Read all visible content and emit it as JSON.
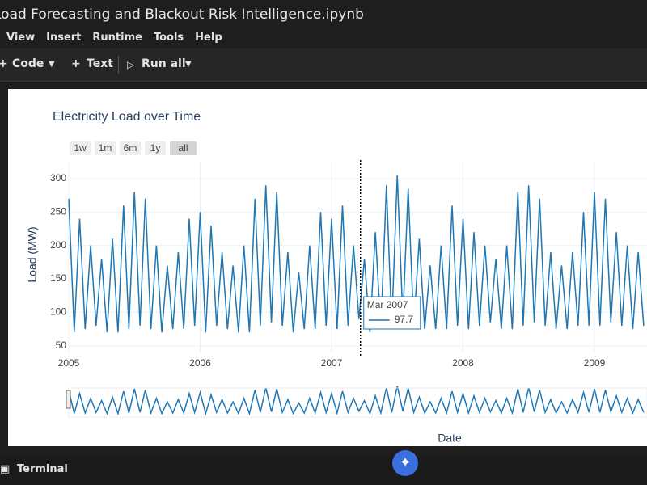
{
  "app": {
    "notebook_title": "Load Forecasting and Blackout Risk Intelligence.ipynb",
    "menu": [
      "View",
      "Insert",
      "Runtime",
      "Tools",
      "Help"
    ],
    "toolbar": [
      "Code",
      "Text",
      "Run all"
    ],
    "status_bar": "Terminal"
  },
  "chart_data": {
    "type": "line",
    "title": "Electricity Load over Time",
    "x_label": "Date",
    "y_label": "Load (MW)",
    "range_buttons": [
      "1w",
      "1m",
      "6m",
      "1y",
      "all"
    ],
    "active_range": 4,
    "color": "#1f77b4",
    "grid": true,
    "xlim": [
      2005,
      2009.4
    ],
    "xticks": [
      2005,
      2006,
      2007,
      2008,
      2009
    ],
    "ylim": [
      40,
      315
    ],
    "yticks": [
      50,
      100,
      150,
      200,
      250,
      300
    ],
    "x": [
      2005.0,
      2005.042,
      2005.083,
      2005.125,
      2005.167,
      2005.208,
      2005.25,
      2005.292,
      2005.333,
      2005.375,
      2005.417,
      2005.458,
      2005.5,
      2005.542,
      2005.583,
      2005.625,
      2005.667,
      2005.708,
      2005.75,
      2005.792,
      2005.833,
      2005.875,
      2005.917,
      2005.958,
      2006.0,
      2006.042,
      2006.083,
      2006.125,
      2006.167,
      2006.208,
      2006.25,
      2006.292,
      2006.333,
      2006.375,
      2006.417,
      2006.458,
      2006.5,
      2006.542,
      2006.583,
      2006.625,
      2006.667,
      2006.708,
      2006.75,
      2006.792,
      2006.833,
      2006.875,
      2006.917,
      2006.958,
      2007.0,
      2007.042,
      2007.083,
      2007.125,
      2007.167,
      2007.208,
      2007.25,
      2007.292,
      2007.333,
      2007.375,
      2007.417,
      2007.458,
      2007.5,
      2007.542,
      2007.583,
      2007.625,
      2007.667,
      2007.708,
      2007.75,
      2007.792,
      2007.833,
      2007.875,
      2007.917,
      2007.958,
      2008.0,
      2008.042,
      2008.083,
      2008.125,
      2008.167,
      2008.208,
      2008.25,
      2008.292,
      2008.333,
      2008.375,
      2008.417,
      2008.458,
      2008.5,
      2008.542,
      2008.583,
      2008.625,
      2008.667,
      2008.708,
      2008.75,
      2008.792,
      2008.833,
      2008.875,
      2008.917,
      2008.958,
      2009.0,
      2009.042,
      2009.083,
      2009.125,
      2009.167,
      2009.208,
      2009.25,
      2009.292,
      2009.333,
      2009.375
    ],
    "values": [
      270,
      70,
      240,
      75,
      200,
      80,
      180,
      70,
      210,
      70,
      260,
      75,
      280,
      80,
      270,
      75,
      200,
      70,
      170,
      75,
      190,
      75,
      240,
      80,
      250,
      70,
      230,
      80,
      190,
      75,
      170,
      70,
      200,
      70,
      270,
      80,
      290,
      85,
      280,
      80,
      190,
      70,
      160,
      75,
      200,
      75,
      250,
      80,
      240,
      75,
      260,
      80,
      200,
      90,
      180,
      70,
      220,
      75,
      290,
      80,
      305,
      90,
      285,
      80,
      210,
      75,
      170,
      75,
      200,
      75,
      260,
      80,
      240,
      75,
      220,
      80,
      200,
      85,
      180,
      75,
      200,
      75,
      280,
      80,
      290,
      85,
      270,
      80,
      190,
      75,
      170,
      75,
      190,
      80,
      250,
      80,
      280,
      80,
      270,
      85,
      220,
      80,
      200,
      75,
      190,
      80
    ],
    "hover": {
      "label": "Mar 2007",
      "x": 2007.22,
      "value": 97.7
    }
  }
}
